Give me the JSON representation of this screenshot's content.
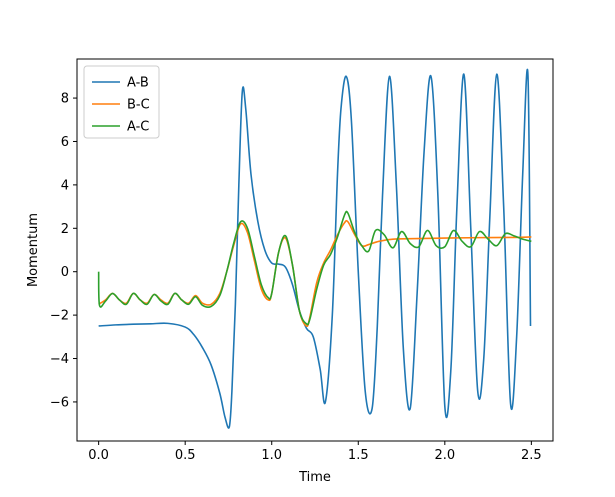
{
  "chart_data": {
    "type": "line",
    "title": "",
    "xlabel": "Time",
    "ylabel": "Momentum",
    "xlim": [
      -0.125,
      2.625
    ],
    "ylim": [
      -7.8,
      9.8
    ],
    "xticks": [
      0.0,
      0.5,
      1.0,
      1.5,
      2.0,
      2.5
    ],
    "xtick_labels": [
      "0.0",
      "0.5",
      "1.0",
      "1.5",
      "2.0",
      "2.5"
    ],
    "yticks": [
      -6,
      -4,
      -2,
      0,
      2,
      4,
      6,
      8
    ],
    "ytick_labels": [
      "−6",
      "−4",
      "−2",
      "0",
      "2",
      "4",
      "6",
      "8"
    ],
    "grid": false,
    "legend_position": "top-left",
    "series": [
      {
        "name": "A-B",
        "color": "#1f77b4",
        "x": [
          0.0,
          0.1,
          0.2,
          0.3,
          0.4,
          0.5,
          0.55,
          0.6,
          0.65,
          0.7,
          0.73,
          0.755,
          0.77,
          0.79,
          0.81,
          0.83,
          0.85,
          0.88,
          0.92,
          0.96,
          1.0,
          1.04,
          1.08,
          1.12,
          1.16,
          1.2,
          1.24,
          1.28,
          1.31,
          1.35,
          1.38,
          1.4,
          1.43,
          1.46,
          1.5,
          1.54,
          1.58,
          1.61,
          1.64,
          1.68,
          1.72,
          1.76,
          1.8,
          1.84,
          1.88,
          1.92,
          1.96,
          2.0,
          2.035,
          2.07,
          2.11,
          2.15,
          2.19,
          2.225,
          2.26,
          2.3,
          2.34,
          2.38,
          2.415,
          2.45,
          2.48,
          2.495
        ],
        "values": [
          -2.5,
          -2.45,
          -2.42,
          -2.4,
          -2.38,
          -2.55,
          -2.9,
          -3.5,
          -4.3,
          -5.6,
          -6.7,
          -7.15,
          -5.5,
          -1.5,
          4.0,
          8.3,
          7.5,
          4.5,
          2.3,
          1.0,
          0.4,
          0.35,
          0.2,
          -0.6,
          -1.8,
          -2.6,
          -3.0,
          -4.5,
          -6.0,
          -2.0,
          4.5,
          7.5,
          9.0,
          7.0,
          0.0,
          -5.5,
          -6.3,
          -2.5,
          3.5,
          9.0,
          4.0,
          -3.5,
          -6.3,
          -1.0,
          5.5,
          9.0,
          3.5,
          -6.2,
          -4.5,
          3.0,
          9.1,
          2.0,
          -5.5,
          -4.0,
          2.5,
          9.1,
          3.0,
          -6.1,
          -3.0,
          4.5,
          9.1,
          -2.5
        ]
      },
      {
        "name": "B-C",
        "color": "#ff7f0e",
        "x": [
          0.0,
          0.04,
          0.08,
          0.12,
          0.16,
          0.2,
          0.24,
          0.28,
          0.32,
          0.36,
          0.4,
          0.44,
          0.48,
          0.52,
          0.56,
          0.6,
          0.65,
          0.7,
          0.74,
          0.78,
          0.82,
          0.86,
          0.9,
          0.94,
          0.98,
          1.0,
          1.04,
          1.08,
          1.12,
          1.16,
          1.2,
          1.22,
          1.26,
          1.3,
          1.34,
          1.38,
          1.42,
          1.44,
          1.48,
          1.52,
          1.56,
          1.62,
          1.7,
          1.8,
          2.0,
          2.2,
          2.4,
          2.5
        ],
        "values": [
          -1.5,
          -1.3,
          -1.0,
          -1.3,
          -1.45,
          -1.0,
          -1.3,
          -1.45,
          -1.05,
          -1.3,
          -1.45,
          -1.0,
          -1.3,
          -1.45,
          -1.1,
          -1.45,
          -1.5,
          -1.0,
          0.0,
          1.2,
          2.2,
          1.8,
          0.5,
          -0.8,
          -1.3,
          -1.0,
          0.9,
          1.55,
          0.3,
          -1.8,
          -2.5,
          -2.1,
          -0.5,
          0.4,
          1.0,
          1.7,
          2.25,
          2.3,
          1.7,
          1.2,
          1.25,
          1.4,
          1.5,
          1.52,
          1.55,
          1.57,
          1.58,
          1.6
        ]
      },
      {
        "name": "A-C",
        "color": "#2ca02c",
        "x": [
          0.0,
          0.005,
          0.04,
          0.08,
          0.12,
          0.16,
          0.2,
          0.24,
          0.28,
          0.32,
          0.36,
          0.4,
          0.44,
          0.48,
          0.52,
          0.56,
          0.6,
          0.65,
          0.7,
          0.74,
          0.78,
          0.82,
          0.86,
          0.9,
          0.94,
          0.98,
          1.0,
          1.04,
          1.08,
          1.12,
          1.16,
          1.2,
          1.22,
          1.26,
          1.3,
          1.34,
          1.38,
          1.42,
          1.44,
          1.48,
          1.52,
          1.56,
          1.6,
          1.65,
          1.7,
          1.75,
          1.8,
          1.85,
          1.9,
          1.95,
          2.0,
          2.05,
          2.1,
          2.15,
          2.2,
          2.25,
          2.3,
          2.35,
          2.4,
          2.45,
          2.5
        ],
        "values": [
          0.0,
          -1.55,
          -1.35,
          -1.0,
          -1.3,
          -1.5,
          -1.0,
          -1.3,
          -1.5,
          -1.05,
          -1.35,
          -1.5,
          -1.0,
          -1.3,
          -1.5,
          -1.15,
          -1.55,
          -1.6,
          -1.1,
          0.0,
          1.3,
          2.3,
          2.0,
          0.7,
          -0.6,
          -1.2,
          -1.0,
          0.9,
          1.65,
          0.3,
          -1.8,
          -2.4,
          -2.2,
          -0.8,
          0.3,
          0.8,
          1.6,
          2.6,
          2.7,
          1.8,
          1.2,
          0.95,
          1.9,
          1.7,
          1.1,
          1.85,
          1.3,
          1.15,
          1.9,
          1.2,
          1.15,
          1.9,
          1.4,
          1.15,
          1.85,
          1.5,
          1.2,
          1.75,
          1.65,
          1.5,
          1.4
        ]
      }
    ]
  }
}
